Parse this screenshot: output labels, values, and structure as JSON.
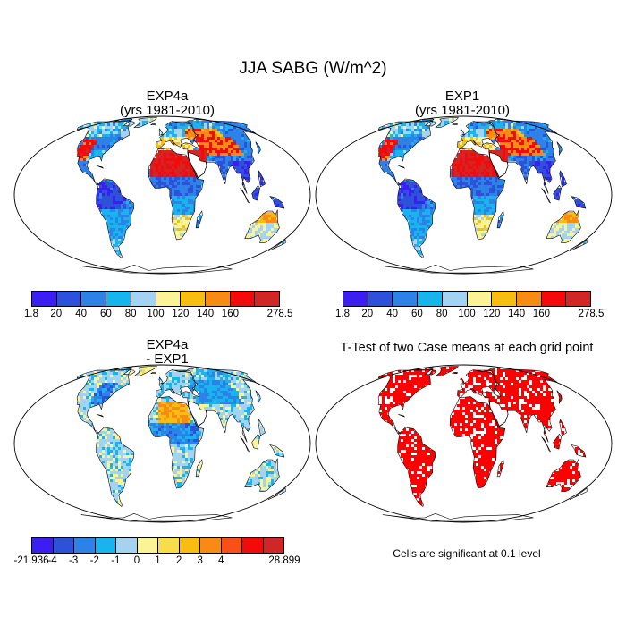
{
  "title": "JJA SABG (W/m^2)",
  "panels": [
    {
      "title_line1": "EXP4a",
      "title_line2": "(yrs 1981-2010)"
    },
    {
      "title_line1": "EXP1",
      "title_line2": "(yrs 1981-2010)"
    },
    {
      "title_line1": "EXP4a",
      "title_line2": "- EXP1"
    },
    {
      "title_line1": "T-Test of two Case means at each grid point",
      "title_line2": ""
    }
  ],
  "colorbars": {
    "absolute": {
      "labels": [
        "1.8",
        "20",
        "40",
        "60",
        "80",
        "100",
        "120",
        "140",
        "160",
        "278.5"
      ],
      "colors": [
        "#3a1ef2",
        "#2d52d9",
        "#2c82e6",
        "#17b4ee",
        "#a3d3f0",
        "#fbf497",
        "#f7bd10",
        "#f78b14",
        "#f40a0a",
        "#d12626"
      ]
    },
    "difference": {
      "labels": [
        "-21.936",
        "-4",
        "-3",
        "-2",
        "-1",
        "0",
        "1",
        "2",
        "3",
        "4",
        "28.899"
      ],
      "colors": [
        "#3a1ef2",
        "#2d52d9",
        "#2c82e6",
        "#17b4ee",
        "#a3d3f0",
        "#fbf497",
        "#f9dc4a",
        "#f7bd10",
        "#f78b14",
        "#f9501a",
        "#f40a0a",
        "#d12626"
      ]
    }
  },
  "note": "Cells are significant at 0.1 level",
  "chart_data": [
    {
      "type": "heatmap",
      "title": "EXP4a (yrs 1981-2010)",
      "subtitle": "JJA SABG (W/m^2)",
      "colorbar_levels": [
        1.8,
        20,
        40,
        60,
        80,
        100,
        120,
        140,
        160,
        278.5
      ],
      "range": [
        1.8,
        278.5
      ],
      "regions": {
        "sahara_arabia": "160-278.5",
        "amazon": "20-40",
        "southeast_asia": "20-40",
        "australia": "120-160",
        "north_america_west": "140-278.5"
      }
    },
    {
      "type": "heatmap",
      "title": "EXP1 (yrs 1981-2010)",
      "subtitle": "JJA SABG (W/m^2)",
      "colorbar_levels": [
        1.8,
        20,
        40,
        60,
        80,
        100,
        120,
        140,
        160,
        278.5
      ],
      "range": [
        1.8,
        278.5
      ],
      "regions": {
        "sahara_arabia": "160-278.5",
        "amazon": "20-40",
        "southeast_asia": "20-40",
        "australia": "120-160",
        "north_america_west": "140-278.5"
      }
    },
    {
      "type": "heatmap",
      "title": "EXP4a - EXP1",
      "subtitle": "JJA SABG (W/m^2)",
      "colorbar_levels": [
        -21.936,
        -4,
        -3,
        -2,
        -1,
        0,
        1,
        2,
        3,
        4,
        28.899
      ],
      "range": [
        -21.936,
        28.899
      ],
      "regions": {
        "sahara": "1 to 4",
        "north_america_east": "-4 to -2",
        "central_asia": "-4 to -2",
        "south_america": "-1 to 0"
      }
    },
    {
      "type": "heatmap",
      "title": "T-Test of two Case means at each grid point",
      "note": "Cells are significant at 0.1 level",
      "significant_color": "#ff0000"
    }
  ]
}
